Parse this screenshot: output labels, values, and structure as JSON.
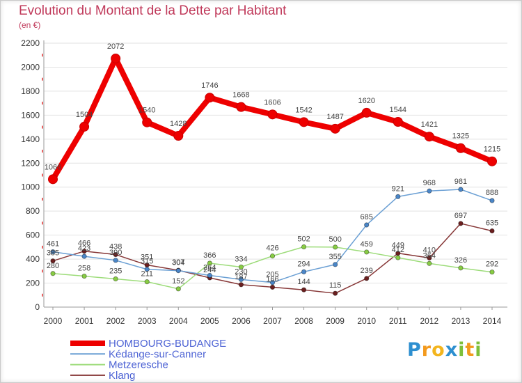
{
  "chart_data": {
    "type": "line",
    "title": "Evolution du Montant de la Dette par Habitant",
    "subtitle": "(en €)",
    "x": [
      "2000",
      "2001",
      "2002",
      "2003",
      "2004",
      "2005",
      "2006",
      "2007",
      "2008",
      "2009",
      "2010",
      "2011",
      "2012",
      "2013",
      "2014"
    ],
    "ylim": [
      0,
      2200
    ],
    "yticks": [
      0,
      200,
      400,
      600,
      800,
      1000,
      1200,
      1400,
      1600,
      1800,
      2000,
      2200
    ],
    "grid": true,
    "legend_position": "bottom-left",
    "series": [
      {
        "name": "HOMBOURG-BUDANGE",
        "color": "#ee0000",
        "marker_color": "#ee0000",
        "values": [
          1066,
          1504,
          2072,
          1540,
          1428,
          1746,
          1668,
          1606,
          1542,
          1487,
          1620,
          1544,
          1421,
          1325,
          1215
        ]
      },
      {
        "name": "Kédange-sur-Canner",
        "color": "#6a9fd4",
        "marker_color": "#4a86c8",
        "values": [
          461,
          423,
          390,
          315,
          304,
          264,
          230,
          205,
          294,
          355,
          685,
          921,
          968,
          981,
          888
        ]
      },
      {
        "name": "Metzeresche",
        "color": "#9ddc7a",
        "marker_color": "#88cc44",
        "values": [
          280,
          258,
          235,
          211,
          152,
          366,
          334,
          426,
          502,
          500,
          459,
          412,
          364,
          326,
          292
        ]
      },
      {
        "name": "Klang",
        "color": "#863636",
        "marker_color": "#6b1f1f",
        "values": [
          385,
          466,
          438,
          351,
          307,
          244,
          187,
          166,
          144,
          115,
          239,
          449,
          410,
          697,
          635
        ]
      }
    ],
    "legend_text_color": "#4c62d4",
    "title_color": "#c0395a"
  },
  "logo": "Proxiti",
  "logo_colors": [
    "#2d8fd0",
    "#f39a1e",
    "#f3b51e",
    "#2d8fd0",
    "#7dbf3a",
    "#f39a1e",
    "#7dbf3a"
  ]
}
